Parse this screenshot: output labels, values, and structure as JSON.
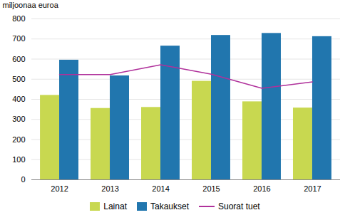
{
  "chart_data": {
    "type": "bar",
    "categories": [
      "2012",
      "2013",
      "2014",
      "2015",
      "2016",
      "2017"
    ],
    "series": [
      {
        "name": "Lainat",
        "color": "#c8d850",
        "values": [
          420,
          355,
          360,
          490,
          388,
          357
        ]
      },
      {
        "name": "Takaukset",
        "color": "#2176ae",
        "values": [
          595,
          517,
          665,
          718,
          728,
          712
        ]
      },
      {
        "name": "Suorat tuet",
        "type": "line",
        "color": "#b0319b",
        "values": [
          523,
          523,
          572,
          525,
          455,
          487
        ]
      }
    ],
    "ylabel": "miljoonaa euroa",
    "ylim": [
      0,
      800
    ],
    "yticks": [
      0,
      100,
      200,
      300,
      400,
      500,
      600,
      700,
      800
    ],
    "grid": true,
    "legend": "bottom"
  }
}
